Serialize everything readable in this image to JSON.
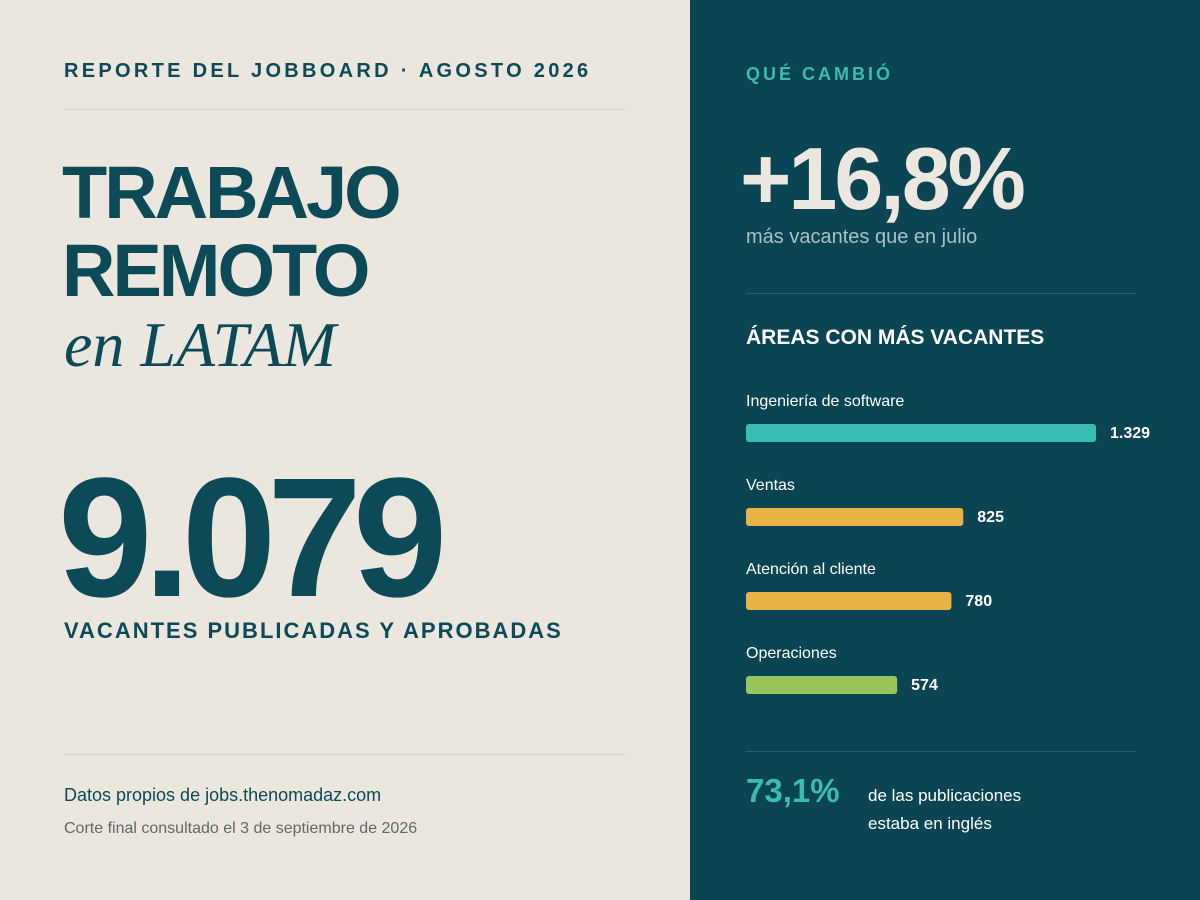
{
  "header": {
    "kicker": "REPORTE DEL JOBBOARD · AGOSTO 2026",
    "title_line1": "TRABAJO",
    "title_line2": "REMOTO",
    "title_line3": "en LATAM"
  },
  "stat": {
    "value": "9.079",
    "label": "VACANTES PUBLICADAS Y APROBADAS"
  },
  "footer": {
    "source": "Datos propios de jobs.thenomadaz.com",
    "note": "Corte final consultado el 3 de septiembre de 2026"
  },
  "panel": {
    "kicker": "QUÉ CAMBIÓ",
    "change": "+16,8%",
    "change_note": "más vacantes que en julio",
    "english_share": "73,1%",
    "english_note_line1": "de las publicaciones",
    "english_note_line2": "estaba en inglés"
  },
  "chart_data": {
    "type": "hbar",
    "title": "ÁREAS CON MÁS VACANTES",
    "categories": [
      "Ingeniería de software",
      "Ventas",
      "Atención al cliente",
      "Operaciones"
    ],
    "values": [
      1329,
      825,
      780,
      574
    ],
    "value_labels": [
      "1.329",
      "825",
      "780",
      "574"
    ],
    "colors": [
      "#3bbcb0",
      "#e8b247",
      "#e8b247",
      "#9ac55a"
    ]
  }
}
